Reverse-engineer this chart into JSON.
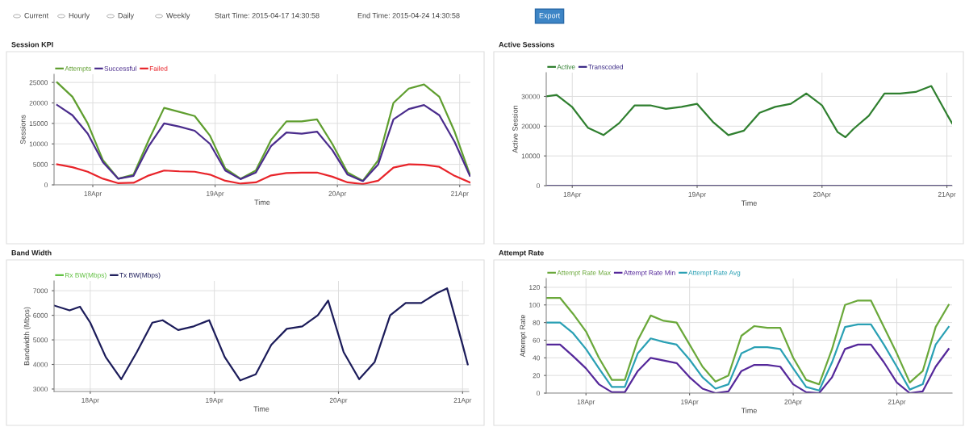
{
  "chart_data": [
    {
      "type": "other",
      "annotations": [
        "Current",
        "Hourly",
        "Daily",
        "Weekly",
        "Start Time: 2015-04-17 14:30:58",
        "End Time: 2015-04-24 14:30:58",
        "Export"
      ]
    },
    {
      "type": "line",
      "title": "Session KPI",
      "xlabel": "Time",
      "ylabel": "Sessions",
      "grid": true,
      "legend": "top left",
      "marker": "none",
      "line_style": "solid",
      "x": [
        "2015-04-17T17:00",
        "2015-04-17T20:00",
        "2015-04-17T23:00",
        "2015-04-18T02:00",
        "2015-04-18T05:00",
        "2015-04-18T08:00",
        "2015-04-18T11:00",
        "2015-04-18T14:00",
        "2015-04-18T17:00",
        "2015-04-18T20:00",
        "2015-04-18T23:00",
        "2015-04-19T02:00",
        "2015-04-19T05:00",
        "2015-04-19T08:00",
        "2015-04-19T11:00",
        "2015-04-19T14:00",
        "2015-04-19T17:00",
        "2015-04-19T20:00",
        "2015-04-19T23:00",
        "2015-04-20T02:00",
        "2015-04-20T05:00",
        "2015-04-20T08:00",
        "2015-04-20T11:00",
        "2015-04-20T14:00",
        "2015-04-20T17:00",
        "2015-04-20T20:00",
        "2015-04-20T23:00",
        "2015-04-21T02:00"
      ],
      "xlim": [
        "2015-04-17T16:24",
        "2015-04-21T02:06"
      ],
      "xticks": [
        {
          "value": "2015-04-18",
          "label": "18Apr"
        },
        {
          "value": "2015-04-19",
          "label": "19Apr"
        },
        {
          "value": "2015-04-20",
          "label": "20Apr"
        },
        {
          "value": "2015-04-21",
          "label": "21Apr"
        }
      ],
      "ylim": [
        0,
        27000
      ],
      "yticks": [
        0,
        5000,
        10000,
        15000,
        20000,
        25000
      ],
      "series": [
        {
          "name": "Attempts",
          "color": "#5f9e2f",
          "values": [
            25000,
            21500,
            15000,
            6000,
            1500,
            2500,
            11000,
            18800,
            17800,
            16800,
            12000,
            4000,
            1500,
            3500,
            11000,
            15500,
            15500,
            16000,
            10000,
            3000,
            1000,
            6000,
            20000,
            23500,
            24500,
            21500,
            13000,
            2500
          ]
        },
        {
          "name": "Successful",
          "color": "#4a2c8c",
          "values": [
            19500,
            17000,
            12500,
            5500,
            1500,
            2200,
            9500,
            15000,
            14200,
            13200,
            10000,
            3500,
            1400,
            3000,
            9500,
            12800,
            12500,
            13000,
            8500,
            2500,
            900,
            5000,
            16000,
            18500,
            19500,
            17000,
            10500,
            2200
          ]
        },
        {
          "name": "Failed",
          "color": "#e8242a",
          "values": [
            5000,
            4300,
            3200,
            1500,
            400,
            500,
            2300,
            3500,
            3300,
            3200,
            2500,
            1000,
            300,
            600,
            2300,
            2900,
            3000,
            3000,
            2000,
            600,
            200,
            1000,
            4200,
            5000,
            4900,
            4400,
            2200,
            600
          ]
        }
      ]
    },
    {
      "type": "line",
      "title": "Active Sessions",
      "xlabel": "Time",
      "ylabel": "Active Session",
      "grid": true,
      "legend": "top left",
      "marker": "none",
      "line_style": "solid",
      "x": [
        "2015-04-17T19:00",
        "2015-04-17T21:00",
        "2015-04-18T00:00",
        "2015-04-18T03:00",
        "2015-04-18T06:00",
        "2015-04-18T09:00",
        "2015-04-18T12:00",
        "2015-04-18T15:00",
        "2015-04-18T18:00",
        "2015-04-18T21:00",
        "2015-04-19T00:00",
        "2015-04-19T03:00",
        "2015-04-19T06:00",
        "2015-04-19T09:00",
        "2015-04-19T12:00",
        "2015-04-19T15:00",
        "2015-04-19T18:00",
        "2015-04-19T21:00",
        "2015-04-20T00:00",
        "2015-04-20T03:00",
        "2015-04-20T04:30",
        "2015-04-20T06:00",
        "2015-04-20T09:00",
        "2015-04-20T12:00",
        "2015-04-20T15:00",
        "2015-04-20T18:00",
        "2015-04-20T21:00",
        "2015-04-21T00:00",
        "2015-04-21T01:00"
      ],
      "xlim": [
        "2015-04-17T19:00",
        "2015-04-21T01:00"
      ],
      "xticks": [
        {
          "value": "2015-04-18",
          "label": "18Apr"
        },
        {
          "value": "2015-04-19",
          "label": "19Apr"
        },
        {
          "value": "2015-04-20",
          "label": "20Apr"
        },
        {
          "value": "2015-04-21",
          "label": "21Apr"
        }
      ],
      "ylim": [
        0,
        38000
      ],
      "yticks": [
        0,
        10000,
        20000,
        30000
      ],
      "series": [
        {
          "name": "Active",
          "color": "#2f7f2f",
          "values": [
            30000,
            30500,
            26400,
            19500,
            17000,
            21000,
            27000,
            27000,
            25800,
            26500,
            27500,
            21500,
            17000,
            18500,
            24500,
            26500,
            27500,
            31000,
            27000,
            18000,
            16300,
            19000,
            23500,
            31000,
            31000,
            31500,
            33500,
            24000,
            21000
          ]
        },
        {
          "name": "Transcoded",
          "color": "#3b2a86",
          "values": [
            0,
            0,
            0,
            0,
            0,
            0,
            0,
            0,
            0,
            0,
            0,
            0,
            0,
            0,
            0,
            0,
            0,
            0,
            0,
            0,
            0,
            0,
            0,
            0,
            0,
            0,
            0,
            0,
            0
          ]
        }
      ]
    },
    {
      "type": "line",
      "title": "Band Width",
      "xlabel": "Time",
      "ylabel": "Bandwidth (Mbps)",
      "grid": true,
      "legend": "top left",
      "marker": "none",
      "line_style": "solid",
      "x": [
        "2015-04-17T17:00",
        "2015-04-17T20:00",
        "2015-04-17T22:00",
        "2015-04-18T00:00",
        "2015-04-18T03:00",
        "2015-04-18T06:00",
        "2015-04-18T09:00",
        "2015-04-18T12:00",
        "2015-04-18T14:00",
        "2015-04-18T17:00",
        "2015-04-18T20:00",
        "2015-04-18T23:00",
        "2015-04-19T02:00",
        "2015-04-19T05:00",
        "2015-04-19T08:00",
        "2015-04-19T11:00",
        "2015-04-19T14:00",
        "2015-04-19T17:00",
        "2015-04-19T20:00",
        "2015-04-19T22:00",
        "2015-04-20T01:00",
        "2015-04-20T04:00",
        "2015-04-20T07:00",
        "2015-04-20T10:00",
        "2015-04-20T13:00",
        "2015-04-20T16:00",
        "2015-04-20T19:00",
        "2015-04-20T21:00",
        "2015-04-21T00:00",
        "2015-04-21T01:00"
      ],
      "xlim": [
        "2015-04-17T17:00",
        "2015-04-21T01:12"
      ],
      "xticks": [
        {
          "value": "2015-04-18",
          "label": "18Apr"
        },
        {
          "value": "2015-04-19",
          "label": "19Apr"
        },
        {
          "value": "2015-04-20",
          "label": "20Apr"
        },
        {
          "value": "2015-04-21",
          "label": "21Apr"
        }
      ],
      "ylim": [
        2900,
        7400
      ],
      "yticks": [
        3000,
        4000,
        5000,
        6000,
        7000
      ],
      "series": [
        {
          "name": "Rx BW(Mbps)",
          "color": "#5fbf3f",
          "values": [
            null,
            null,
            null,
            null,
            null,
            null,
            null,
            null,
            null,
            null,
            null,
            null,
            null,
            null,
            null,
            null,
            null,
            null,
            null,
            null,
            null,
            null,
            null,
            null,
            null,
            null,
            null,
            null,
            null,
            null
          ]
        },
        {
          "name": "Tx BW(Mbps)",
          "color": "#1c1c5a",
          "values": [
            6400,
            6200,
            6350,
            5700,
            4300,
            3400,
            4500,
            5700,
            5800,
            5400,
            5550,
            5800,
            4300,
            3350,
            3600,
            4800,
            5450,
            5550,
            6000,
            6600,
            4500,
            3400,
            4100,
            6000,
            6500,
            6500,
            6900,
            7100,
            4800,
            4000
          ]
        }
      ]
    },
    {
      "type": "line",
      "title": "Attempt Rate",
      "xlabel": "Time",
      "ylabel": "Attempt Rate",
      "grid": true,
      "legend": "top left",
      "marker": "none",
      "line_style": "solid",
      "x": [
        "2015-04-17T15:00",
        "2015-04-17T18:00",
        "2015-04-17T21:00",
        "2015-04-18T00:00",
        "2015-04-18T03:00",
        "2015-04-18T06:00",
        "2015-04-18T09:00",
        "2015-04-18T12:00",
        "2015-04-18T15:00",
        "2015-04-18T18:00",
        "2015-04-18T21:00",
        "2015-04-19T00:00",
        "2015-04-19T03:00",
        "2015-04-19T06:00",
        "2015-04-19T09:00",
        "2015-04-19T12:00",
        "2015-04-19T15:00",
        "2015-04-19T18:00",
        "2015-04-19T21:00",
        "2015-04-20T00:00",
        "2015-04-20T03:00",
        "2015-04-20T06:00",
        "2015-04-20T09:00",
        "2015-04-20T12:00",
        "2015-04-20T15:00",
        "2015-04-20T18:00",
        "2015-04-20T21:00",
        "2015-04-21T00:00",
        "2015-04-21T03:00",
        "2015-04-21T06:00",
        "2015-04-21T09:00",
        "2015-04-21T12:00"
      ],
      "xlim": [
        "2015-04-17T14:48",
        "2015-04-21T12:48"
      ],
      "xticks": [
        {
          "value": "2015-04-18",
          "label": "18Apr"
        },
        {
          "value": "2015-04-19",
          "label": "19Apr"
        },
        {
          "value": "2015-04-20",
          "label": "20Apr"
        },
        {
          "value": "2015-04-21",
          "label": "21Apr"
        }
      ],
      "ylim": [
        0,
        130
      ],
      "yticks": [
        0,
        20,
        40,
        60,
        80,
        100,
        120
      ],
      "series": [
        {
          "name": "Attempt Rate Max",
          "color": "#6aa83a",
          "values": [
            108,
            108,
            90,
            70,
            40,
            15,
            15,
            60,
            88,
            82,
            80,
            55,
            30,
            13,
            20,
            65,
            76,
            74,
            74,
            40,
            15,
            10,
            50,
            100,
            105,
            105,
            75,
            45,
            12,
            25,
            75,
            100
          ]
        },
        {
          "name": "Attempt Rate Min",
          "color": "#55289a",
          "values": [
            55,
            55,
            42,
            28,
            10,
            1,
            1,
            25,
            40,
            37,
            34,
            18,
            5,
            0,
            2,
            25,
            32,
            32,
            30,
            10,
            1,
            0,
            18,
            50,
            55,
            55,
            35,
            12,
            0,
            2,
            30,
            50
          ]
        },
        {
          "name": "Attempt Rate Avg",
          "color": "#2aa0b4",
          "values": [
            80,
            80,
            68,
            50,
            28,
            7,
            7,
            45,
            62,
            58,
            55,
            38,
            18,
            5,
            10,
            45,
            52,
            52,
            50,
            28,
            7,
            3,
            35,
            75,
            78,
            78,
            55,
            30,
            4,
            10,
            55,
            75
          ]
        }
      ]
    }
  ]
}
